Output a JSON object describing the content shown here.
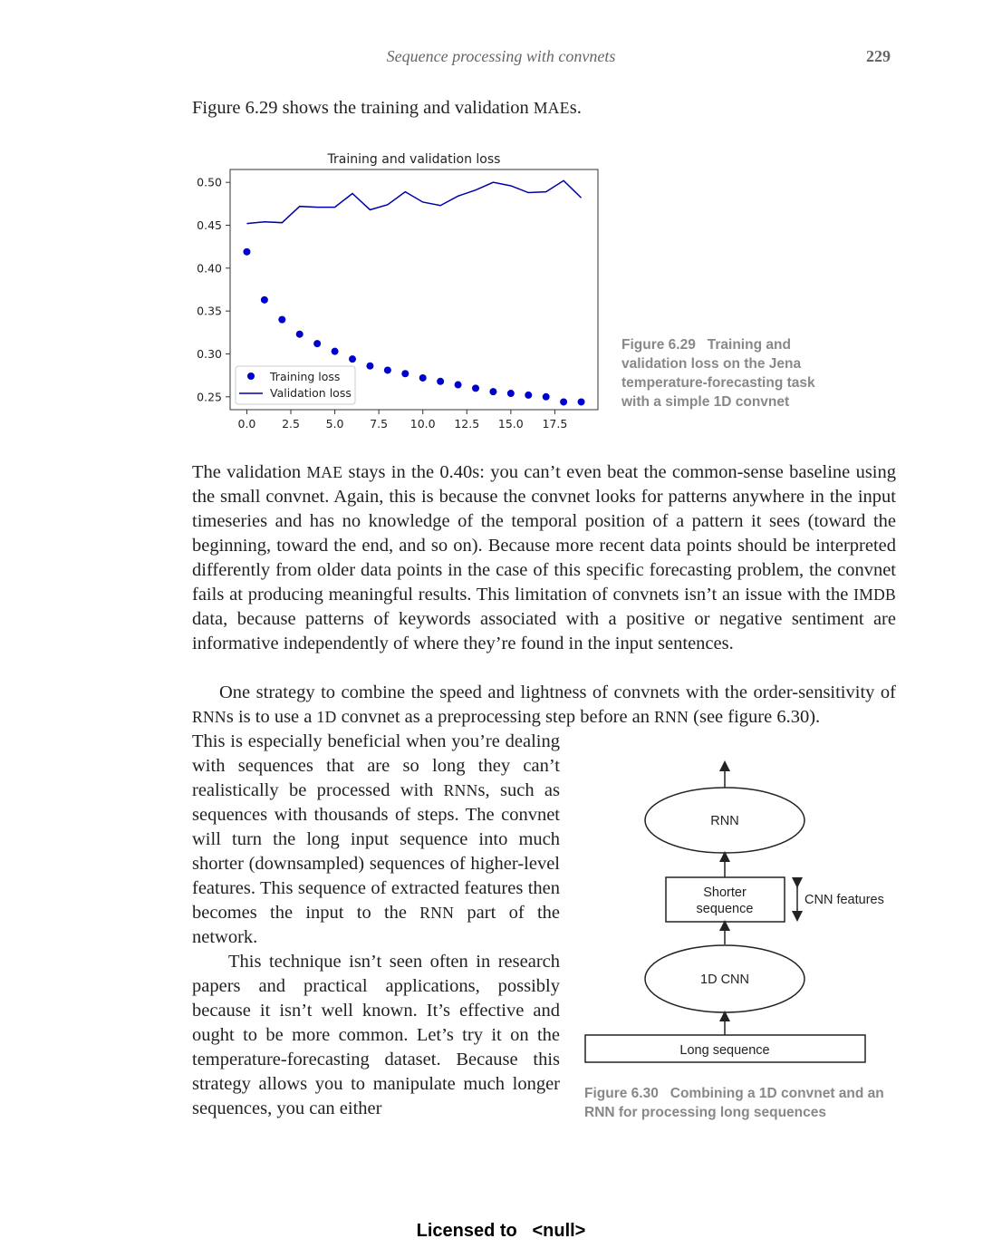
{
  "header": {
    "running_title": "Sequence processing with convnets",
    "page_number": "229"
  },
  "intro": {
    "before": "Figure 6.29 shows the training and validation ",
    "sc": "MAE",
    "after": "s."
  },
  "chart_data": {
    "type": "line",
    "title": "Training and validation loss",
    "xlabel": "",
    "ylabel": "",
    "xlim": [
      -0.95,
      19.95
    ],
    "ylim": [
      0.235,
      0.515
    ],
    "x_ticks": [
      "0.0",
      "2.5",
      "5.0",
      "7.5",
      "10.0",
      "12.5",
      "15.0",
      "17.5"
    ],
    "x_tick_values": [
      0,
      2.5,
      5,
      7.5,
      10,
      12.5,
      15,
      17.5
    ],
    "y_ticks": [
      "0.50",
      "0.45",
      "0.40",
      "0.35",
      "0.30",
      "0.25"
    ],
    "y_tick_values": [
      0.5,
      0.45,
      0.4,
      0.35,
      0.3,
      0.25
    ],
    "legend_position": "lower-left",
    "series": [
      {
        "name": "Training loss",
        "style": "dots",
        "color": "#0000cc",
        "x": [
          0,
          1,
          2,
          3,
          4,
          5,
          6,
          7,
          8,
          9,
          10,
          11,
          12,
          13,
          14,
          15,
          16,
          17,
          18,
          19
        ],
        "values": [
          0.419,
          0.363,
          0.34,
          0.323,
          0.312,
          0.303,
          0.294,
          0.286,
          0.281,
          0.277,
          0.272,
          0.268,
          0.264,
          0.26,
          0.256,
          0.254,
          0.252,
          0.25,
          0.244,
          0.244
        ]
      },
      {
        "name": "Validation loss",
        "style": "line",
        "color": "#0000aa",
        "x": [
          0,
          1,
          2,
          3,
          4,
          5,
          6,
          7,
          8,
          9,
          10,
          11,
          12,
          13,
          14,
          15,
          16,
          17,
          18,
          19
        ],
        "values": [
          0.452,
          0.454,
          0.453,
          0.472,
          0.471,
          0.471,
          0.487,
          0.468,
          0.474,
          0.489,
          0.477,
          0.473,
          0.484,
          0.491,
          0.5,
          0.496,
          0.488,
          0.489,
          0.502,
          0.482
        ]
      }
    ]
  },
  "figure_629": {
    "label": "Figure 6.29",
    "text": "Training and validation loss on the Jena temperature-forecasting task with a simple 1D convnet"
  },
  "para1": {
    "a": "The validation ",
    "sc1": "MAE",
    "b": " stays in the 0.40s: you can’t even beat the common-sense baseline using the small convnet. Again, this is because the convnet looks for patterns anywhere in the input timeseries and has no knowledge of the temporal position of a pattern it sees (toward the beginning, toward the end, and so on). Because more recent data points should be interpreted differently from older data points in the case of this specific forecasting problem, the convnet fails at producing meaningful results. This limitation of convnets isn’t an issue with the ",
    "sc2": "IMDB",
    "c": " data, because patterns of keywords associated with a positive or negative sentiment are informative independently of where they’re found in the input sentences."
  },
  "para2": {
    "a": "One strategy to combine the speed and lightness of convnets with the order-sensitivity of ",
    "sc1": "RNN",
    "b": "s is to use a ",
    "sc2": "1D",
    "c": " convnet as a preprocessing step before an ",
    "sc3": "RNN",
    "d": " (see figure 6.30)."
  },
  "para3": {
    "a": "This is especially beneficial when you’re dealing with sequences that are so long they can’t realistically be processed with ",
    "sc1": "RNN",
    "b": "s, such as sequences with thousands of steps. The convnet will turn the long input sequence into much shorter (downsampled) sequences of higher-level features. This sequence of extracted features then becomes the input to the ",
    "sc2": "RNN",
    "c": " part of the network."
  },
  "para4": {
    "text": "This technique isn’t seen often in research papers and practical applications, possibly because it isn’t well known. It’s effective and ought to be more common. Let’s try it on the temperature-forecasting dataset. Because this strategy allows you to manipulate much longer sequences, you can either"
  },
  "diagram": {
    "rnn": "RNN",
    "shorter_line1": "Shorter",
    "shorter_line2": "sequence",
    "cnn_features": "CNN features",
    "cnn": "1D CNN",
    "long": "Long sequence"
  },
  "figure_630": {
    "label": "Figure 6.30",
    "text": "Combining a 1D convnet and an RNN for processing long sequences"
  },
  "footer": {
    "licensed": "Licensed to",
    "user": "<null>"
  }
}
